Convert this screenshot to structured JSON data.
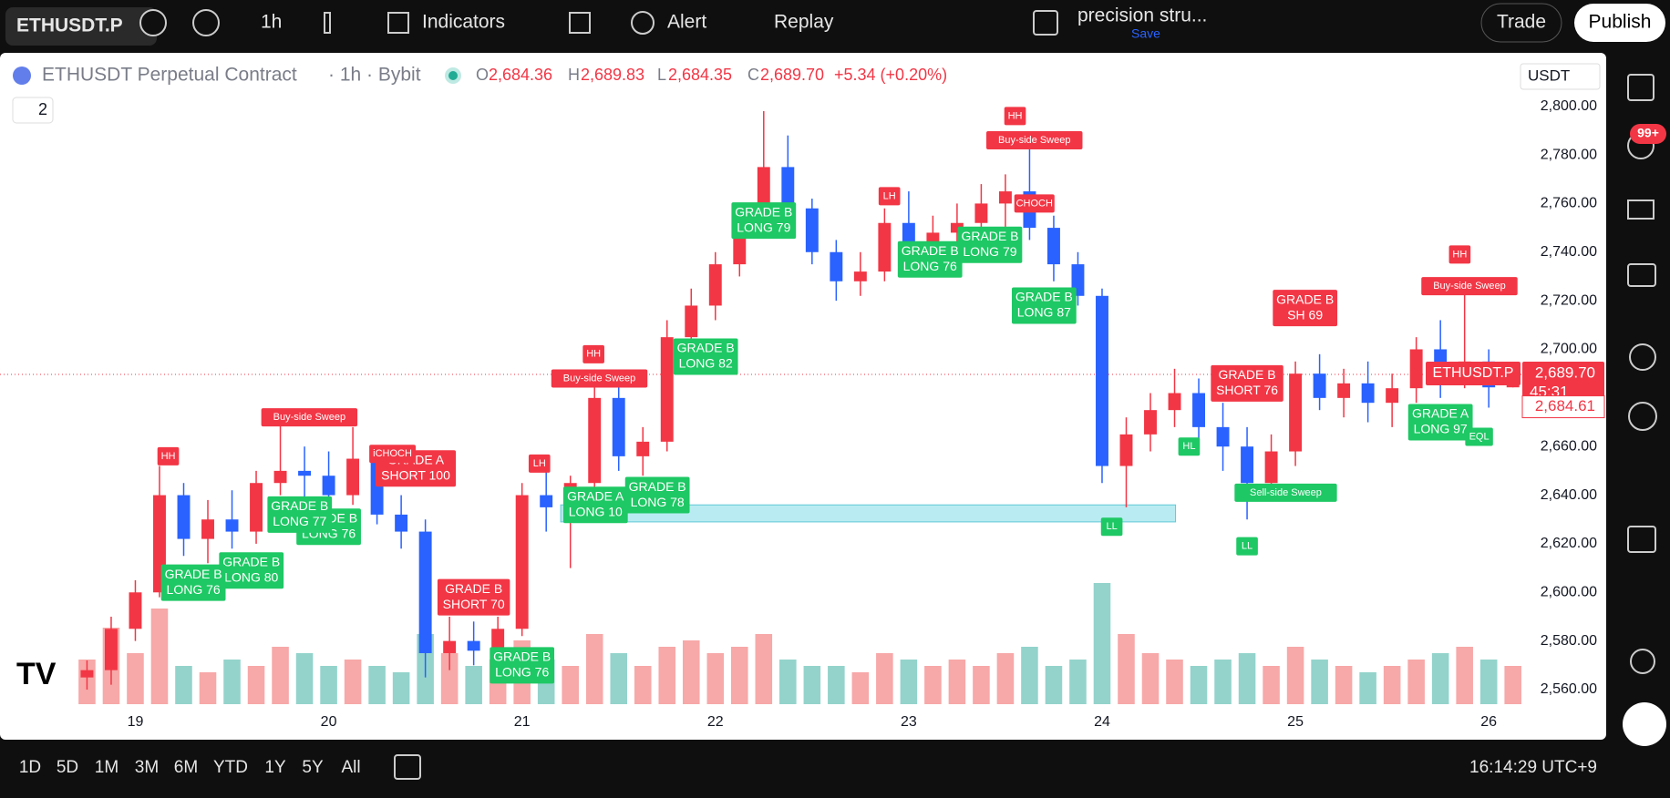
{
  "toolbar": {
    "symbol": "ETHUSDT.P",
    "interval": "1h",
    "indicators": "Indicators",
    "alert": "Alert",
    "replay": "Replay",
    "layout": "precision stru...",
    "save": "Save",
    "trade": "Trade",
    "publish": "Publish"
  },
  "legend": {
    "name": "ETHUSDT Perpetual Contract",
    "meta": "· 1h · Bybit",
    "o_label": "O",
    "o": "2,684.36",
    "h_label": "H",
    "h": "2,689.83",
    "l_label": "L",
    "l": "2,684.35",
    "c_label": "C",
    "c": "2,689.70",
    "change": "+5.34 (+0.20%)",
    "indicator_count": "2",
    "currency": "USDT"
  },
  "sidebar": {
    "notifications": "99+"
  },
  "bottom_bar": {
    "ranges": [
      "1D",
      "5D",
      "1M",
      "3M",
      "6M",
      "YTD",
      "1Y",
      "5Y",
      "All"
    ],
    "clock": "16:14:29 UTC+9"
  },
  "chart_data": {
    "type": "candlestick",
    "up_color": "#f23645",
    "down_color": "#2962ff",
    "up_volume_color": "#f7a8a8",
    "down_volume_color": "#93d3cc",
    "xlim": [
      18.3,
      26.15
    ],
    "xticks": [
      19,
      20,
      21,
      22,
      23,
      24,
      25,
      26
    ],
    "ylim": [
      2554,
      2822
    ],
    "yticks": [
      {
        "value": 2560,
        "label": "2,560.00"
      },
      {
        "value": 2580,
        "label": "2,580.00"
      },
      {
        "value": 2600,
        "label": "2,600.00"
      },
      {
        "value": 2620,
        "label": "2,620.00"
      },
      {
        "value": 2640,
        "label": "2,640.00"
      },
      {
        "value": 2660,
        "label": "2,660.00"
      },
      {
        "value": 2680,
        "label": "2,680.00"
      },
      {
        "value": 2700,
        "label": "2,700.00"
      },
      {
        "value": 2720,
        "label": "2,720.00"
      },
      {
        "value": 2740,
        "label": "2,740.00"
      },
      {
        "value": 2760,
        "label": "2,760.00"
      },
      {
        "value": 2780,
        "label": "2,780.00"
      },
      {
        "value": 2800,
        "label": "2,800.00"
      }
    ],
    "grid": false,
    "x": [
      18.75,
      18.875,
      19,
      19.125,
      19.25,
      19.375,
      19.5,
      19.625,
      19.75,
      19.875,
      20,
      20.125,
      20.25,
      20.375,
      20.5,
      20.625,
      20.75,
      20.875,
      21,
      21.125,
      21.25,
      21.375,
      21.5,
      21.625,
      21.75,
      21.875,
      22,
      22.125,
      22.25,
      22.375,
      22.5,
      22.625,
      22.75,
      22.875,
      23,
      23.125,
      23.25,
      23.375,
      23.5,
      23.625,
      23.75,
      23.875,
      24,
      24.125,
      24.25,
      24.375,
      24.5,
      24.625,
      24.75,
      24.875,
      25,
      25.125,
      25.25,
      25.375,
      25.5,
      25.625,
      25.75,
      25.875,
      26,
      26.125
    ],
    "candles": [
      [
        2565,
        2572,
        2560,
        2568
      ],
      [
        2568,
        2590,
        2562,
        2585
      ],
      [
        2585,
        2605,
        2580,
        2600
      ],
      [
        2600,
        2652,
        2598,
        2640
      ],
      [
        2640,
        2645,
        2615,
        2622
      ],
      [
        2622,
        2638,
        2612,
        2630
      ],
      [
        2630,
        2642,
        2618,
        2625
      ],
      [
        2625,
        2650,
        2620,
        2645
      ],
      [
        2645,
        2672,
        2640,
        2650
      ],
      [
        2650,
        2660,
        2635,
        2648
      ],
      [
        2648,
        2658,
        2630,
        2640
      ],
      [
        2640,
        2668,
        2636,
        2655
      ],
      [
        2655,
        2660,
        2628,
        2632
      ],
      [
        2632,
        2640,
        2618,
        2625
      ],
      [
        2625,
        2630,
        2565,
        2575
      ],
      [
        2575,
        2590,
        2568,
        2580
      ],
      [
        2580,
        2588,
        2570,
        2576
      ],
      [
        2576,
        2590,
        2572,
        2585
      ],
      [
        2585,
        2645,
        2582,
        2640
      ],
      [
        2640,
        2652,
        2625,
        2635
      ],
      [
        2635,
        2648,
        2610,
        2645
      ],
      [
        2645,
        2690,
        2640,
        2680
      ],
      [
        2680,
        2685,
        2650,
        2656
      ],
      [
        2656,
        2668,
        2648,
        2662
      ],
      [
        2662,
        2712,
        2658,
        2705
      ],
      [
        2705,
        2725,
        2700,
        2718
      ],
      [
        2718,
        2740,
        2712,
        2735
      ],
      [
        2735,
        2760,
        2730,
        2755
      ],
      [
        2755,
        2798,
        2750,
        2775
      ],
      [
        2775,
        2788,
        2752,
        2758
      ],
      [
        2758,
        2762,
        2735,
        2740
      ],
      [
        2740,
        2745,
        2720,
        2728
      ],
      [
        2728,
        2740,
        2722,
        2732
      ],
      [
        2732,
        2758,
        2728,
        2752
      ],
      [
        2752,
        2765,
        2735,
        2742
      ],
      [
        2742,
        2755,
        2730,
        2748
      ],
      [
        2748,
        2760,
        2740,
        2752
      ],
      [
        2752,
        2768,
        2745,
        2760
      ],
      [
        2760,
        2772,
        2748,
        2765
      ],
      [
        2765,
        2785,
        2745,
        2750
      ],
      [
        2750,
        2755,
        2728,
        2735
      ],
      [
        2735,
        2740,
        2718,
        2722
      ],
      [
        2722,
        2725,
        2645,
        2652
      ],
      [
        2652,
        2672,
        2635,
        2665
      ],
      [
        2665,
        2682,
        2658,
        2675
      ],
      [
        2675,
        2692,
        2668,
        2682
      ],
      [
        2682,
        2688,
        2660,
        2668
      ],
      [
        2668,
        2678,
        2650,
        2660
      ],
      [
        2660,
        2668,
        2630,
        2645
      ],
      [
        2645,
        2665,
        2640,
        2658
      ],
      [
        2658,
        2695,
        2652,
        2690
      ],
      [
        2690,
        2698,
        2675,
        2680
      ],
      [
        2680,
        2692,
        2672,
        2686
      ],
      [
        2686,
        2695,
        2670,
        2678
      ],
      [
        2678,
        2690,
        2668,
        2684
      ],
      [
        2684,
        2705,
        2678,
        2700
      ],
      [
        2700,
        2712,
        2680,
        2688
      ],
      [
        2688,
        2726,
        2684,
        2695
      ],
      [
        2695,
        2700,
        2676,
        2684.36
      ],
      [
        2684.36,
        2689.83,
        2684.35,
        2689.7
      ]
    ],
    "vlim": [
      0,
      100
    ],
    "volume": [
      35,
      60,
      40,
      75,
      30,
      25,
      35,
      30,
      45,
      40,
      30,
      35,
      30,
      25,
      55,
      40,
      30,
      35,
      50,
      35,
      30,
      55,
      40,
      30,
      45,
      50,
      40,
      45,
      55,
      35,
      30,
      30,
      25,
      40,
      35,
      30,
      35,
      30,
      40,
      45,
      30,
      35,
      95,
      55,
      40,
      35,
      30,
      35,
      40,
      30,
      45,
      35,
      30,
      25,
      30,
      35,
      40,
      45,
      35,
      30
    ],
    "zones": [
      {
        "x": [
          21.2,
          24.38
        ],
        "y": [
          2629,
          2636
        ],
        "color": "#b9ecf2"
      }
    ],
    "annotations": [
      {
        "x": 22.25,
        "y": 2753,
        "lines": [
          "GRADE B",
          "LONG 79"
        ],
        "color": "#1ec864"
      },
      {
        "x": 21.95,
        "y": 2697,
        "lines": [
          "GRADE B",
          "LONG 82"
        ],
        "color": "#1ec864"
      },
      {
        "x": 21.7,
        "y": 2640,
        "lines": [
          "GRADE B",
          "LONG 78"
        ],
        "color": "#1ec864"
      },
      {
        "x": 21.38,
        "y": 2636,
        "lines": [
          "GRADE A",
          "LONG 10"
        ],
        "color": "#1ec864"
      },
      {
        "x": 20.45,
        "y": 2651,
        "lines": [
          "GRADE A",
          "SHORT 100"
        ],
        "color": "#f23645"
      },
      {
        "x": 20.75,
        "y": 2598,
        "lines": [
          "GRADE B",
          "SHORT 70"
        ],
        "color": "#f23645"
      },
      {
        "x": 20.0,
        "y": 2627,
        "lines": [
          "GRADE B",
          "LONG 76"
        ],
        "color": "#1ec864"
      },
      {
        "x": 19.85,
        "y": 2632,
        "lines": [
          "GRADE B",
          "LONG 77"
        ],
        "color": "#1ec864"
      },
      {
        "x": 19.6,
        "y": 2609,
        "lines": [
          "GRADE B",
          "LONG 80"
        ],
        "color": "#1ec864"
      },
      {
        "x": 19.3,
        "y": 2604,
        "lines": [
          "GRADE B",
          "LONG 76"
        ],
        "color": "#1ec864"
      },
      {
        "x": 21.0,
        "y": 2570,
        "lines": [
          "GRADE B",
          "LONG 76"
        ],
        "color": "#1ec864"
      },
      {
        "x": 23.42,
        "y": 2743,
        "lines": [
          "GRADE B",
          "LONG 79"
        ],
        "color": "#1ec864"
      },
      {
        "x": 23.11,
        "y": 2737,
        "lines": [
          "GRADE B",
          "LONG 76"
        ],
        "color": "#1ec864"
      },
      {
        "x": 23.7,
        "y": 2718,
        "lines": [
          "GRADE B",
          "LONG 87"
        ],
        "color": "#1ec864"
      },
      {
        "x": 24.75,
        "y": 2686,
        "lines": [
          "GRADE B",
          "SHORT 76"
        ],
        "color": "#f23645"
      },
      {
        "x": 25.05,
        "y": 2717,
        "lines": [
          "GRADE B",
          "SH 69"
        ],
        "color": "#f23645"
      },
      {
        "x": 25.75,
        "y": 2670,
        "lines": [
          "GRADE A",
          "LONG 97"
        ],
        "color": "#1ec864"
      },
      {
        "x": 19.17,
        "y": 2656,
        "lines": [
          "HH"
        ],
        "color": "#f23645"
      },
      {
        "x": 21.37,
        "y": 2698,
        "lines": [
          "HH"
        ],
        "color": "#f23645"
      },
      {
        "x": 21.09,
        "y": 2653,
        "lines": [
          "LH"
        ],
        "color": "#f23645"
      },
      {
        "x": 22.9,
        "y": 2763,
        "lines": [
          "LH"
        ],
        "color": "#f23645"
      },
      {
        "x": 23.55,
        "y": 2796,
        "lines": [
          "HH"
        ],
        "color": "#f23645"
      },
      {
        "x": 24.05,
        "y": 2627,
        "lines": [
          "LL"
        ],
        "color": "#1ec864"
      },
      {
        "x": 24.45,
        "y": 2660,
        "lines": [
          "HL"
        ],
        "color": "#1ec864"
      },
      {
        "x": 24.75,
        "y": 2619,
        "lines": [
          "LL"
        ],
        "color": "#1ec864"
      },
      {
        "x": 25.85,
        "y": 2739,
        "lines": [
          "HH"
        ],
        "color": "#f23645"
      },
      {
        "x": 21.4,
        "y": 2688,
        "lines": [
          "Buy-side Sweep"
        ],
        "color": "#f23645"
      },
      {
        "x": 23.65,
        "y": 2786,
        "lines": [
          "Buy-side Sweep"
        ],
        "color": "#f23645"
      },
      {
        "x": 25.9,
        "y": 2726,
        "lines": [
          "Buy-side Sweep"
        ],
        "color": "#f23645"
      },
      {
        "x": 19.9,
        "y": 2672,
        "lines": [
          "Buy-side Sweep"
        ],
        "color": "#f23645"
      },
      {
        "x": 24.95,
        "y": 2641,
        "lines": [
          "Sell-side Sweep"
        ],
        "color": "#1ec864"
      },
      {
        "x": 23.65,
        "y": 2760,
        "lines": [
          "CHOCH"
        ],
        "color": "#f23645"
      },
      {
        "x": 20.33,
        "y": 2657,
        "lines": [
          "iCHOCH"
        ],
        "color": "#f23645"
      },
      {
        "x": 25.95,
        "y": 2664,
        "lines": [
          "EQL"
        ],
        "color": "#1ec864"
      }
    ],
    "price_line": {
      "value": 2689.7,
      "label": "2,689.70",
      "countdown": "45:31",
      "symbol": "ETHUSDT.P",
      "color": "#f23645"
    },
    "prev_close": {
      "value": 2684.61,
      "label": "2,684.61"
    }
  }
}
